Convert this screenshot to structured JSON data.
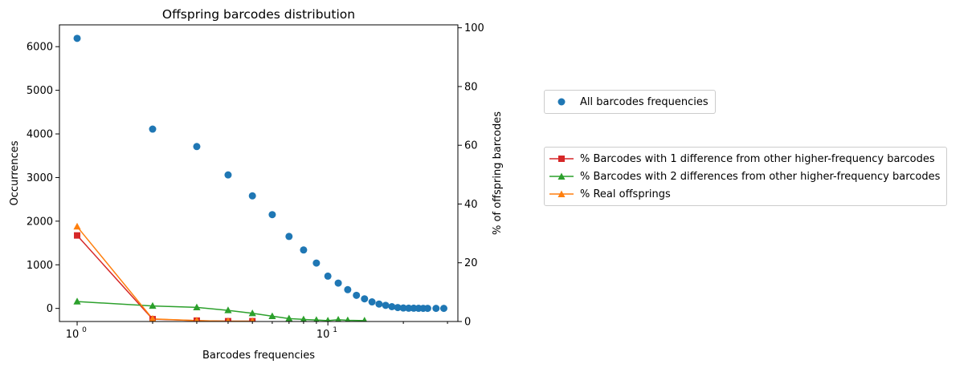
{
  "chart_data": {
    "type": "scatter",
    "title": "Offspring barcodes distribution",
    "xlabel": "Barcodes frequencies",
    "ylabel": "Occurrences",
    "y2label": "% of offspring barcodes",
    "xscale": "log",
    "xlim": [
      0.85,
      33
    ],
    "ylim": [
      -300,
      6500
    ],
    "y2lim": [
      0,
      101
    ],
    "x_major_ticks": [
      {
        "value": 1,
        "base": "10",
        "exp": "0"
      },
      {
        "value": 10,
        "base": "10",
        "exp": "1"
      }
    ],
    "x_minor_ticks": [
      2,
      3,
      4,
      5,
      6,
      7,
      8,
      9,
      20,
      30
    ],
    "y_ticks": [
      0,
      1000,
      2000,
      3000,
      4000,
      5000,
      6000
    ],
    "y2_ticks": [
      0,
      20,
      40,
      60,
      80,
      100
    ],
    "grid": false,
    "series": [
      {
        "name": "All barcodes frequencies",
        "axis": "left",
        "style": "scatter",
        "color": "#1f77b4",
        "marker": "circle",
        "x": [
          1,
          2,
          3,
          4,
          5,
          6,
          7,
          8,
          9,
          10,
          11,
          12,
          13,
          14,
          15,
          16,
          17,
          18,
          19,
          20,
          21,
          22,
          23,
          24,
          25,
          27,
          29
        ],
        "y": [
          6190,
          4110,
          3710,
          3060,
          2580,
          2150,
          1650,
          1340,
          1040,
          740,
          580,
          430,
          300,
          220,
          150,
          100,
          70,
          40,
          20,
          10,
          5,
          5,
          3,
          2,
          2,
          1,
          1
        ]
      },
      {
        "name": "% Barcodes with 1 difference from other higher-frequency barcodes",
        "axis": "right",
        "style": "line",
        "color": "#d62728",
        "marker": "square",
        "x": [
          1,
          2,
          3,
          4,
          5
        ],
        "y": [
          29.3,
          0.8,
          0.3,
          0.1,
          0.1
        ]
      },
      {
        "name": "% Barcodes with 2 differences from other higher-frequency barcodes",
        "axis": "right",
        "style": "line",
        "color": "#2ca02c",
        "marker": "triangle",
        "x": [
          1,
          2,
          3,
          4,
          5,
          6,
          7,
          8,
          9,
          10,
          11,
          12,
          14
        ],
        "y": [
          6.8,
          5.3,
          4.8,
          3.8,
          2.8,
          1.8,
          1.0,
          0.7,
          0.5,
          0.3,
          0.6,
          0.4,
          0.3
        ]
      },
      {
        "name": "% Real offsprings",
        "axis": "right",
        "style": "line",
        "color": "#ff7f0e",
        "marker": "triangle",
        "x": [
          1,
          2,
          3,
          4,
          5
        ],
        "y": [
          32.3,
          0.9,
          0.3,
          0.1,
          0.1
        ]
      }
    ],
    "legends": [
      {
        "position": "right-upper",
        "entries": [
          "All barcodes frequencies"
        ]
      },
      {
        "position": "right-middle",
        "entries": [
          "% Barcodes with 1 difference from other higher-frequency barcodes",
          "% Barcodes with 2 differences from other higher-frequency barcodes",
          "% Real offsprings"
        ]
      }
    ]
  }
}
